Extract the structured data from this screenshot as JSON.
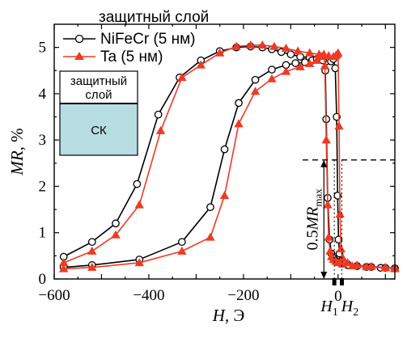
{
  "chart_data": {
    "type": "line",
    "xlabel": {
      "var": "H",
      "unit": ", Э"
    },
    "ylabel": {
      "var": "MR",
      "unit": ", %"
    },
    "xlim": [
      -600,
      120
    ],
    "ylim": [
      0,
      5.5
    ],
    "xticks": [
      -600,
      -400,
      -200
    ],
    "xtick_labels": [
      "−600",
      "−400",
      "−200"
    ],
    "yticks": [
      0,
      1,
      2,
      3,
      4,
      5
    ],
    "ytick_labels": [
      "0",
      "1",
      "2",
      "3",
      "4",
      "5"
    ],
    "grid": false,
    "legend": {
      "title": "защитный слой",
      "position": "top-left",
      "entries": [
        "NiFeCr (5 нм)",
        "Ta (5 нм)"
      ]
    },
    "series": [
      {
        "name": "NiFeCr (5 нм)",
        "color": "#000000",
        "marker": "open-circle",
        "branch_down": {
          "x": [
            -580,
            -520,
            -470,
            -425,
            -380,
            -335,
            -290,
            -250,
            -215,
            -185,
            -160,
            -140,
            -120,
            -100,
            -80,
            -60,
            -40,
            -25,
            -15,
            -10,
            -6,
            -3,
            -1,
            1,
            3,
            8,
            20,
            40,
            60,
            90,
            120
          ],
          "y": [
            0.48,
            0.8,
            1.2,
            2.05,
            3.55,
            4.35,
            4.72,
            4.92,
            5.0,
            5.02,
            5.0,
            4.96,
            4.9,
            4.85,
            4.8,
            4.78,
            4.75,
            4.7,
            4.7,
            4.75,
            4.55,
            3.5,
            1.8,
            0.85,
            0.55,
            0.4,
            0.32,
            0.28,
            0.26,
            0.24,
            0.23
          ]
        },
        "branch_up": {
          "x": [
            -580,
            -520,
            -420,
            -330,
            -270,
            -240,
            -210,
            -175,
            -140,
            -110,
            -90,
            -70,
            -55,
            -45,
            -38,
            -32,
            -27,
            -25,
            -22,
            -18,
            -14,
            -10,
            -6,
            -2,
            4,
            10,
            20,
            40,
            70,
            100,
            120
          ],
          "y": [
            0.25,
            0.3,
            0.42,
            0.8,
            1.55,
            2.8,
            3.8,
            4.3,
            4.52,
            4.62,
            4.66,
            4.68,
            4.72,
            4.75,
            4.8,
            4.72,
            4.5,
            3.45,
            1.75,
            0.85,
            0.55,
            0.45,
            0.4,
            0.37,
            0.35,
            0.33,
            0.3,
            0.28,
            0.26,
            0.24,
            0.23
          ]
        }
      },
      {
        "name": "Ta (5 нм)",
        "color": "#ee3a25",
        "marker": "filled-triangle",
        "branch_down": {
          "x": [
            -580,
            -520,
            -470,
            -420,
            -375,
            -330,
            -290,
            -250,
            -215,
            -185,
            -160,
            -135,
            -110,
            -85,
            -60,
            -40,
            -20,
            -10,
            -5,
            -2,
            0,
            2,
            4,
            6,
            10,
            20,
            40,
            70,
            100,
            120
          ],
          "y": [
            0.35,
            0.6,
            0.95,
            1.6,
            3.2,
            4.35,
            4.62,
            4.88,
            5.02,
            5.05,
            5.05,
            5.02,
            4.98,
            4.92,
            4.88,
            4.85,
            4.82,
            4.8,
            4.82,
            4.85,
            4.88,
            3.3,
            1.4,
            0.65,
            0.45,
            0.35,
            0.3,
            0.27,
            0.25,
            0.24
          ]
        },
        "branch_up": {
          "x": [
            -580,
            -520,
            -420,
            -330,
            -270,
            -240,
            -210,
            -175,
            -140,
            -110,
            -80,
            -60,
            -45,
            -35,
            -30,
            -28,
            -25,
            -22,
            -20,
            -17,
            -14,
            -10,
            -5,
            0,
            10,
            30,
            60,
            100,
            120
          ],
          "y": [
            0.22,
            0.25,
            0.35,
            0.6,
            0.9,
            1.8,
            3.35,
            4.05,
            4.32,
            4.48,
            4.58,
            4.65,
            4.72,
            4.8,
            4.85,
            4.6,
            3.0,
            1.6,
            0.9,
            0.6,
            0.48,
            0.42,
            0.38,
            0.35,
            0.32,
            0.28,
            0.26,
            0.24,
            0.22
          ]
        }
      }
    ],
    "annotations": {
      "half_max_y": 2.57,
      "half_max_label_var": "0.5MR",
      "half_max_label_sub": "max",
      "h1_label": "H",
      "h1_sub": "1",
      "h2_label": "H",
      "h2_sub": "2",
      "zero_label": "0",
      "h1_x": -8,
      "h2_x": 8,
      "arrow_x": -30
    },
    "inset": {
      "top_label_line1": "защитный",
      "top_label_line2": "слой",
      "bottom_label": "СК",
      "bottom_color": "#b7dde2"
    }
  }
}
